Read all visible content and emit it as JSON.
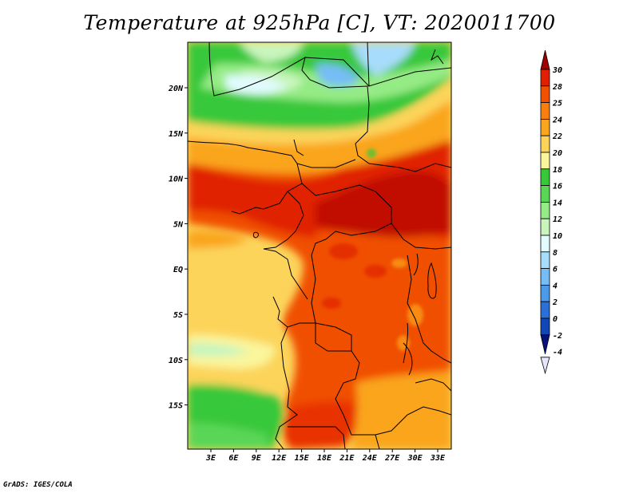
{
  "title": "Temperature at 925hPa [C], VT: 2020011700",
  "credit": "GrADS: IGES/COLA",
  "lat_labels": [
    "20N",
    "15N",
    "10N",
    "5N",
    "EQ",
    "5S",
    "10S",
    "15S"
  ],
  "lon_labels": [
    "3E",
    "6E",
    "9E",
    "12E",
    "15E",
    "18E",
    "21E",
    "24E",
    "27E",
    "30E",
    "33E"
  ],
  "colorbar": {
    "levels": [
      "30",
      "28",
      "25",
      "24",
      "22",
      "20",
      "18",
      "16",
      "14",
      "12",
      "10",
      "8",
      "6",
      "4",
      "2",
      "0",
      "-2",
      "-4"
    ],
    "colors": [
      "#a00000",
      "#e02000",
      "#f05000",
      "#f87e10",
      "#faa51e",
      "#fcd45a",
      "#fbf59c",
      "#37c83a",
      "#5ad656",
      "#95eb85",
      "#c9f5bd",
      "#e2fbff",
      "#a8dcfc",
      "#76bdf5",
      "#4a9ae7",
      "#2b6fd8",
      "#1247b8",
      "#06147a"
    ]
  },
  "colors": {
    "border": "#000000",
    "background": "#ffffff"
  }
}
